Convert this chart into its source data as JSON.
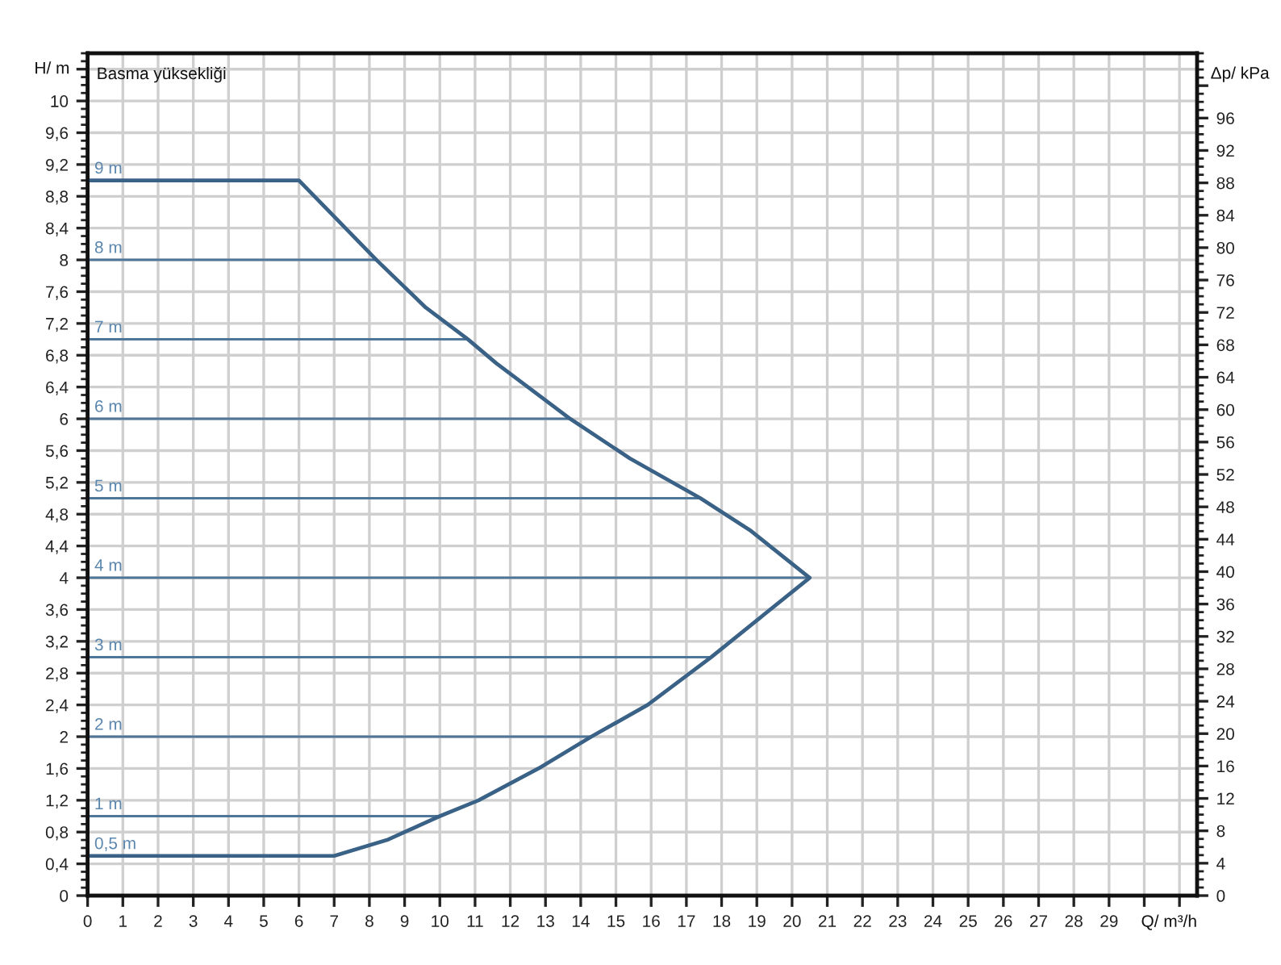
{
  "chart_data": {
    "type": "line",
    "title": "Basma yüksekliği",
    "xlabel": "Q/ m³/h",
    "ylabel": "H/ m",
    "y2label": "Δp/ kPa",
    "xlim": [
      0,
      31.5
    ],
    "ylim": [
      0,
      10.6
    ],
    "y2lim": [
      0,
      104
    ],
    "xticks": [
      0,
      1,
      2,
      3,
      4,
      5,
      6,
      7,
      8,
      9,
      10,
      11,
      12,
      13,
      14,
      15,
      16,
      17,
      18,
      19,
      20,
      21,
      22,
      23,
      24,
      25,
      26,
      27,
      28,
      29,
      {
        "value": 30,
        "label": null
      },
      {
        "value": 31,
        "label": null
      }
    ],
    "yticks": [
      0,
      {
        "value": 0.4,
        "label": "0,4"
      },
      {
        "value": 0.8,
        "label": "0,8"
      },
      {
        "value": 1.2,
        "label": "1,2"
      },
      {
        "value": 1.6,
        "label": "1,6"
      },
      2,
      {
        "value": 2.4,
        "label": "2,4"
      },
      {
        "value": 2.8,
        "label": "2,8"
      },
      {
        "value": 3.2,
        "label": "3,2"
      },
      {
        "value": 3.6,
        "label": "3,6"
      },
      4,
      {
        "value": 4.4,
        "label": "4,4"
      },
      {
        "value": 4.8,
        "label": "4,8"
      },
      {
        "value": 5.2,
        "label": "5,2"
      },
      {
        "value": 5.6,
        "label": "5,6"
      },
      6,
      {
        "value": 6.4,
        "label": "6,4"
      },
      {
        "value": 6.8,
        "label": "6,8"
      },
      {
        "value": 7.2,
        "label": "7,2"
      },
      {
        "value": 7.6,
        "label": "7,6"
      },
      8,
      {
        "value": 8.4,
        "label": "8,4"
      },
      {
        "value": 8.8,
        "label": "8,8"
      },
      {
        "value": 9.2,
        "label": "9,2"
      },
      {
        "value": 9.6,
        "label": "9,6"
      },
      10,
      {
        "value": 10.4,
        "label": null
      }
    ],
    "y2ticks": [
      0,
      4,
      8,
      12,
      16,
      20,
      24,
      28,
      32,
      36,
      40,
      44,
      48,
      52,
      56,
      60,
      64,
      68,
      72,
      76,
      80,
      84,
      88,
      92,
      96,
      {
        "value": 100,
        "label": null
      }
    ],
    "grid": true,
    "annotations": [
      {
        "text": "9 m",
        "x": 0,
        "y": 9
      },
      {
        "text": "0,5 m",
        "x": 0,
        "y": 0.5
      }
    ],
    "series": [
      {
        "color": "#3a6186",
        "x": [
          0,
          6,
          8.2,
          9.6,
          10.8,
          11.6,
          13.1,
          13.7,
          15.4,
          17.4,
          18.8,
          20.5,
          19.1,
          17.7,
          15.9,
          14.3,
          12.8,
          11.1,
          10,
          8.5,
          7,
          0
        ],
        "values": [
          9,
          9,
          8,
          7.4,
          7,
          6.7,
          6.2,
          6,
          5.5,
          5,
          4.6,
          4,
          3.5,
          3,
          2.4,
          2,
          1.6,
          1.2,
          1,
          0.7,
          0.5,
          0.5
        ]
      },
      {
        "name": "8 m",
        "color": "#4f7698",
        "x": [
          0,
          8.2
        ],
        "values": [
          8,
          8
        ]
      },
      {
        "name": "7 m",
        "color": "#4f7698",
        "x": [
          0,
          10.8
        ],
        "values": [
          7,
          7
        ]
      },
      {
        "name": "6 m",
        "color": "#4f7698",
        "x": [
          0,
          13.7
        ],
        "values": [
          6,
          6
        ]
      },
      {
        "name": "5 m",
        "color": "#4f7698",
        "x": [
          0,
          17.4
        ],
        "values": [
          5,
          5
        ]
      },
      {
        "name": "4 m",
        "color": "#4f7698",
        "x": [
          0,
          20.5
        ],
        "values": [
          4,
          4
        ]
      },
      {
        "name": "3 m",
        "color": "#4f7698",
        "x": [
          0,
          17.7
        ],
        "values": [
          3,
          3
        ]
      },
      {
        "name": "2 m",
        "color": "#4f7698",
        "x": [
          0,
          14.3
        ],
        "values": [
          2,
          2
        ]
      },
      {
        "name": "1 m",
        "color": "#4f7698",
        "x": [
          0,
          10
        ],
        "values": [
          1,
          1
        ]
      }
    ]
  }
}
